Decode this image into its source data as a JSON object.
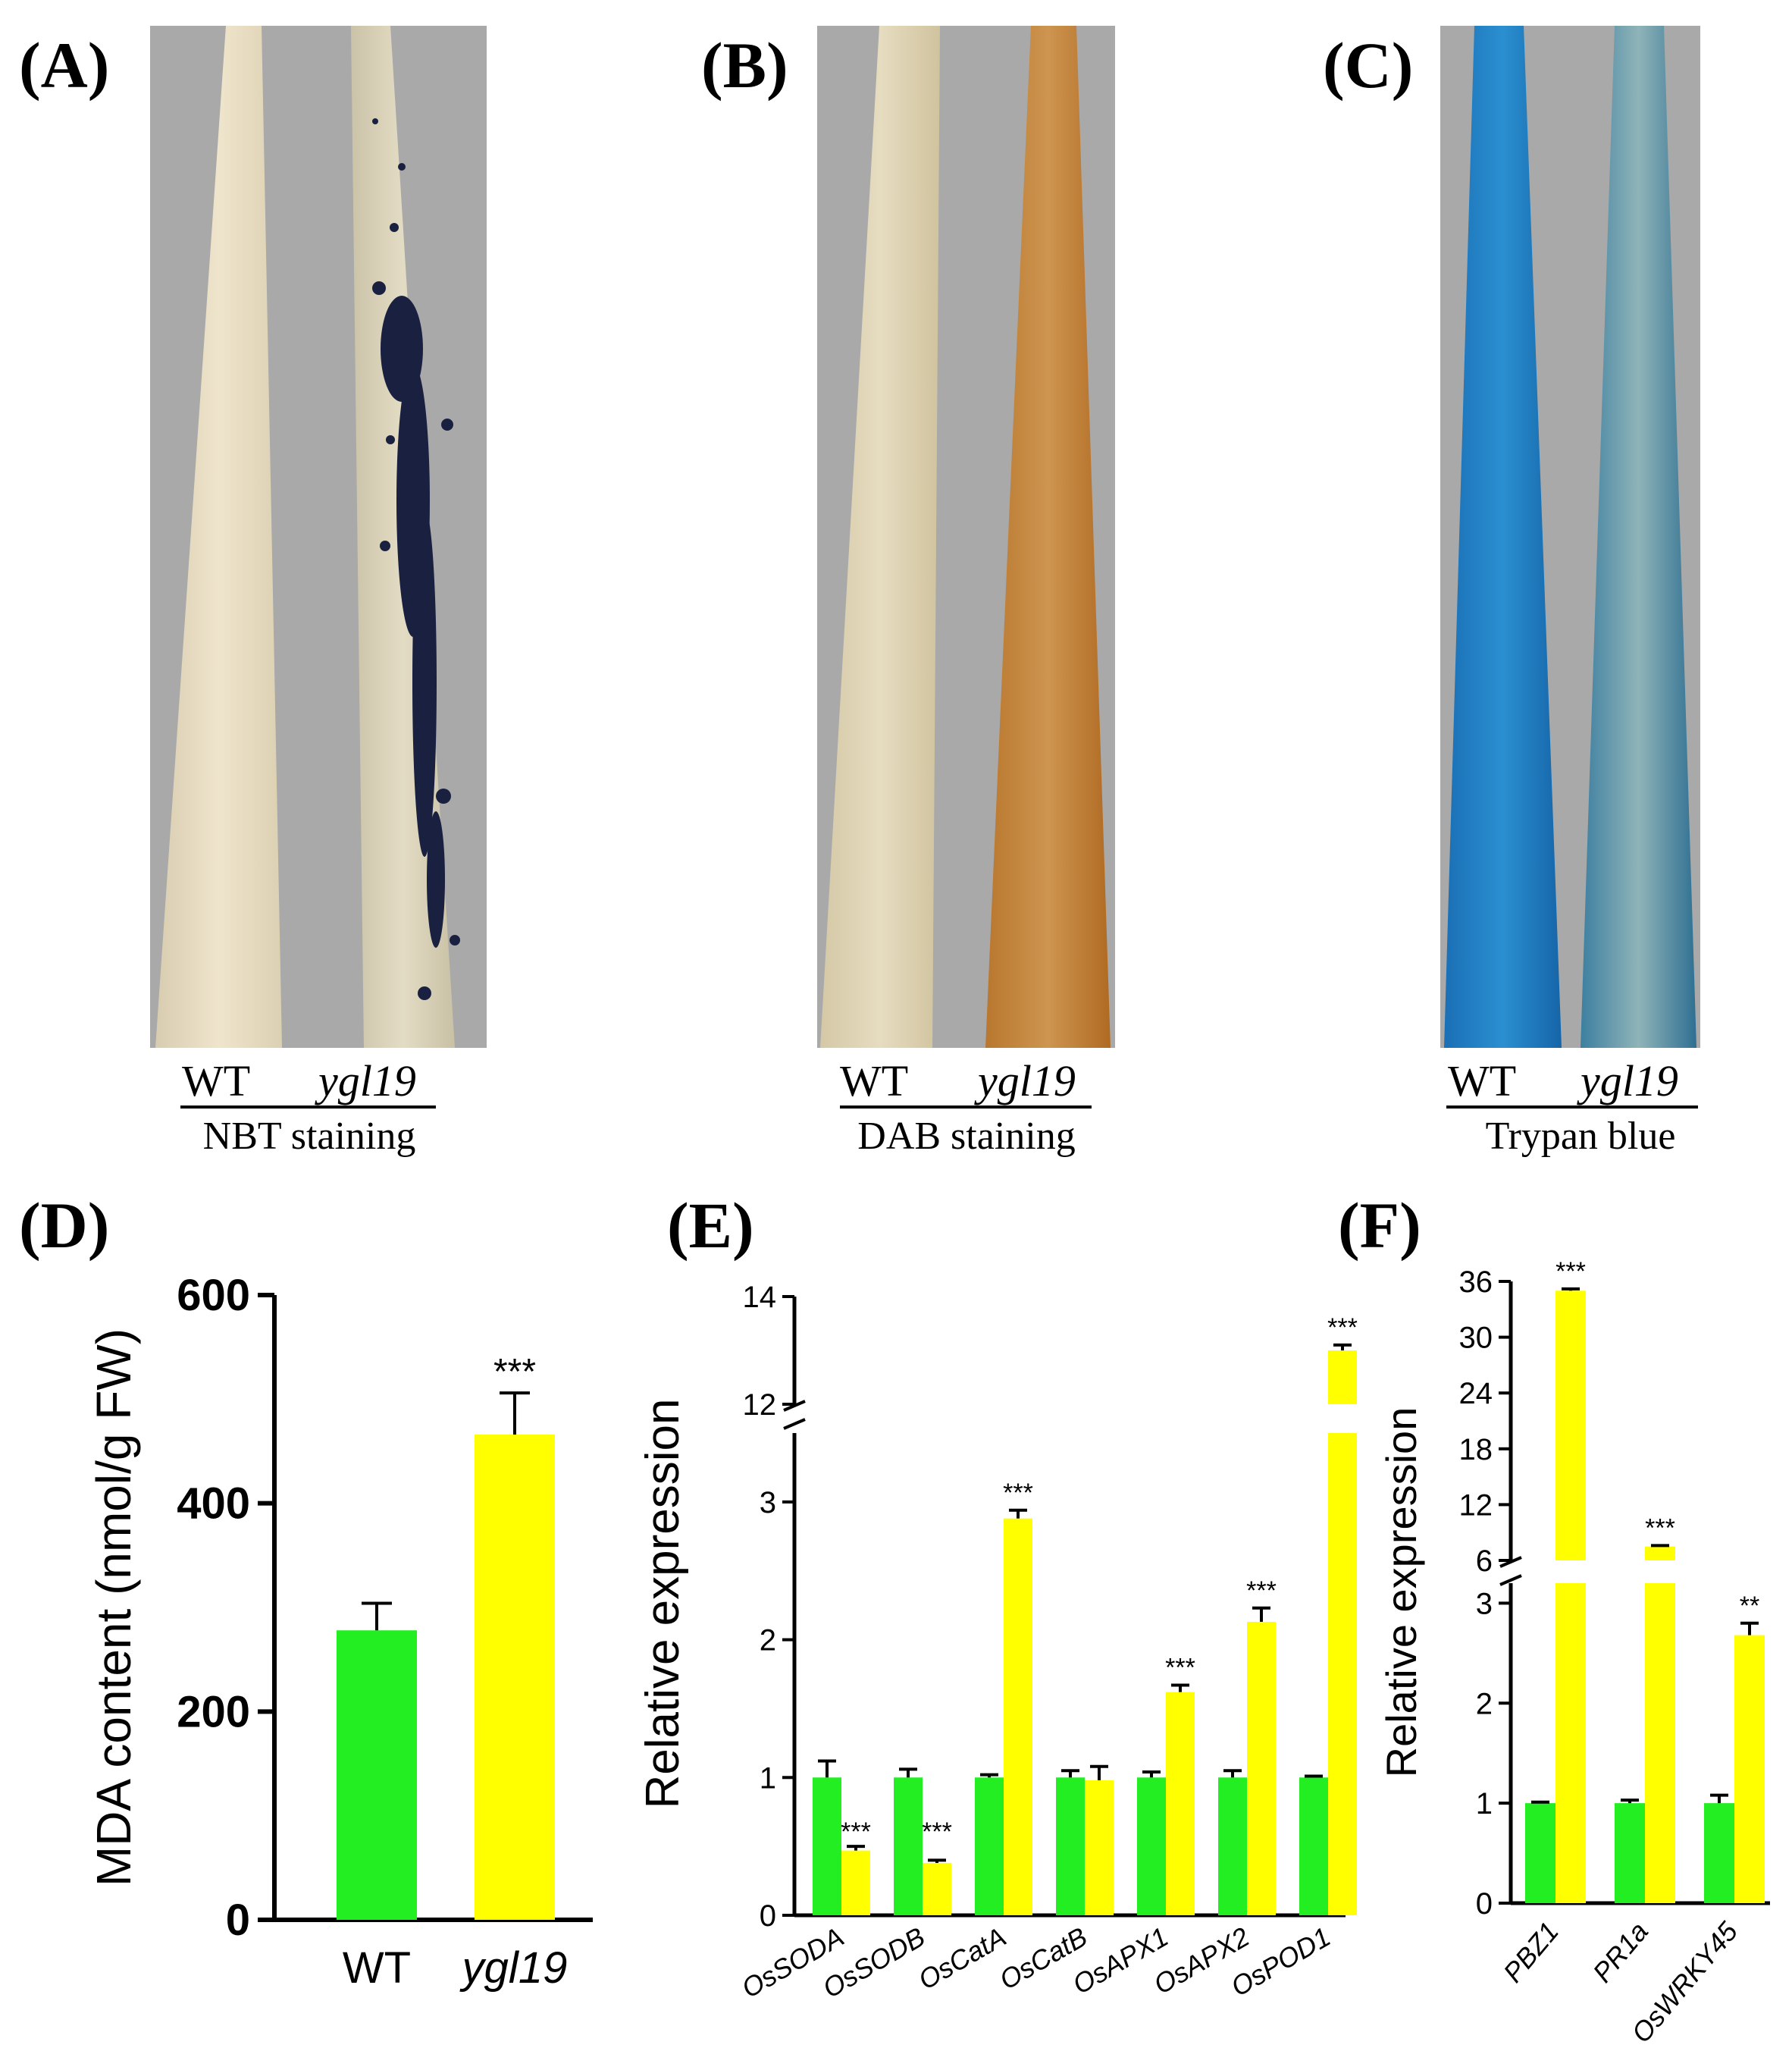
{
  "colors": {
    "wt": "#22ee22",
    "mutant": "#ffff00",
    "axis": "#000000",
    "photo_bg": "#a9a9a9"
  },
  "panels": {
    "A": {
      "label": "(A)",
      "wt_label": "WT",
      "mutant_label": "ygl19",
      "stain": "NBT staining"
    },
    "B": {
      "label": "(B)",
      "wt_label": "WT",
      "mutant_label": "ygl19",
      "stain": "DAB staining"
    },
    "C": {
      "label": "(C)",
      "wt_label": "WT",
      "mutant_label": "ygl19",
      "stain": "Trypan blue"
    },
    "D": {
      "label": "(D)"
    },
    "E": {
      "label": "(E)"
    },
    "F": {
      "label": "(F)"
    }
  },
  "chart_data": [
    {
      "id": "D",
      "type": "bar",
      "ylabel": "MDA content (nmol/g FW)",
      "ylim": [
        0,
        600
      ],
      "yticks": [
        "0",
        "200",
        "400",
        "600"
      ],
      "categories": [
        "WT",
        "ygl19"
      ],
      "values": [
        278,
        466
      ],
      "errors": [
        26,
        40
      ],
      "significance": [
        "",
        "***"
      ]
    },
    {
      "id": "E",
      "type": "bar",
      "ylabel": "Relative expression",
      "yticks": [
        "0",
        "1",
        "2",
        "3",
        "12",
        "14"
      ],
      "axis_break": [
        3.5,
        12
      ],
      "categories": [
        "OsSODA",
        "OsSODB",
        "OsCatA",
        "OsCatB",
        "OsAPX1",
        "OsAPX2",
        "OsPOD1"
      ],
      "series": [
        {
          "values": [
            1.0,
            1.0,
            1.0,
            1.0,
            1.0,
            1.0,
            1.0
          ],
          "errors": [
            0.12,
            0.06,
            0.02,
            0.05,
            0.04,
            0.05,
            0.01
          ]
        },
        {
          "values": [
            0.47,
            0.38,
            2.88,
            0.98,
            1.62,
            2.13,
            13.0
          ],
          "errors": [
            0.03,
            0.02,
            0.06,
            0.1,
            0.05,
            0.1,
            0.1
          ]
        }
      ],
      "significance": [
        "***",
        "***",
        "***",
        "",
        "***",
        "***",
        "***"
      ]
    },
    {
      "id": "F",
      "type": "bar",
      "ylabel": "Relative expression",
      "yticks": [
        "0",
        "1",
        "2",
        "3",
        "6",
        "12",
        "18",
        "24",
        "30",
        "36"
      ],
      "axis_break": [
        3.2,
        6
      ],
      "categories": [
        "PBZ1",
        "PR1a",
        "OsWRKY45"
      ],
      "series": [
        {
          "values": [
            1.0,
            1.0,
            1.0
          ],
          "errors": [
            0.01,
            0.03,
            0.08
          ]
        },
        {
          "values": [
            35.0,
            7.5,
            2.68
          ],
          "errors": [
            0.2,
            0.1,
            0.12
          ]
        }
      ],
      "significance": [
        "***",
        "***",
        "**"
      ]
    }
  ]
}
